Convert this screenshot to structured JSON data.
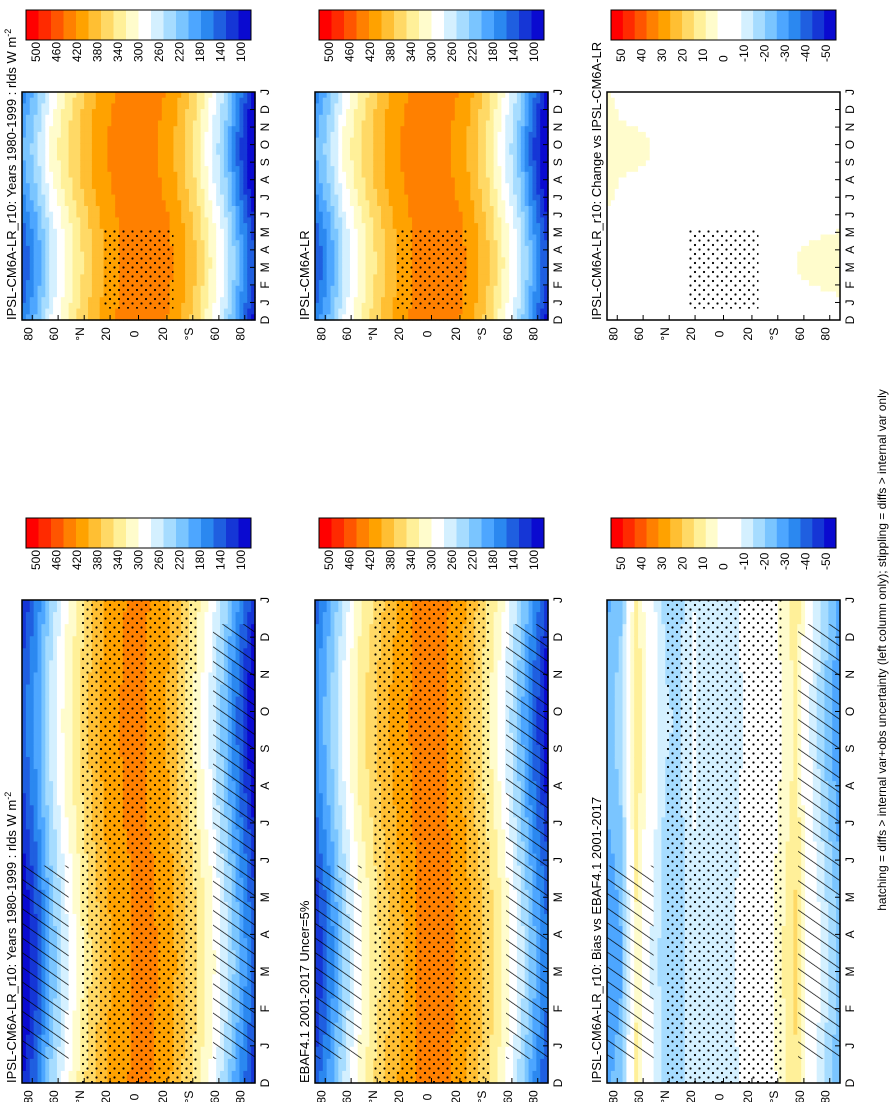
{
  "footer": "hatching = diffs > internal var+obs uncertainty (left column only); stippling = diffs > internal var only",
  "palettes": {
    "absolute": [
      "#ff0000",
      "#ff2a00",
      "#ff5500",
      "#ff8000",
      "#ffa200",
      "#ffbf33",
      "#ffd966",
      "#fff099",
      "#fffccc",
      "#ffffff",
      "#d4f0ff",
      "#a6dcff",
      "#7ac5ff",
      "#4da6ff",
      "#2b88f0",
      "#1f5fe0",
      "#1536d6",
      "#0a0ad0"
    ],
    "difference": [
      "#ff0000",
      "#ff2a00",
      "#ff5500",
      "#ff8000",
      "#ffa200",
      "#ffbf33",
      "#ffd966",
      "#fff099",
      "#fffccc",
      "#ffffff",
      "#ffffff",
      "#d4f0ff",
      "#a6dcff",
      "#7ac5ff",
      "#4da6ff",
      "#2b88f0",
      "#1f5fe0",
      "#1536d6",
      "#0a0ad0"
    ]
  },
  "panels": [
    {
      "id": "r1c1",
      "title": "IPSL-CM6A-LR_r10: Years 1980-1999 : rlds W m",
      "title_sup": "-2",
      "legend_labels": [
        "500",
        "460",
        "420",
        "380",
        "340",
        "300",
        "260",
        "220",
        "180",
        "140",
        "100"
      ]
    },
    {
      "id": "r1c2",
      "title": "IPSL-CM6A-LR_r10: Years 1980-1999 : rlds W m",
      "title_sup": "-2",
      "legend_labels": [
        "500",
        "460",
        "420",
        "380",
        "340",
        "300",
        "260",
        "220",
        "180",
        "140",
        "100"
      ]
    },
    {
      "id": "r2c1",
      "title": "EBAF4.1 2001-2017 Uncer=5%",
      "title_sup": "",
      "legend_labels": [
        "500",
        "460",
        "420",
        "380",
        "340",
        "300",
        "260",
        "220",
        "180",
        "140",
        "100"
      ]
    },
    {
      "id": "r2c2",
      "title": "IPSL-CM6A-LR",
      "title_sup": "",
      "legend_labels": [
        "500",
        "460",
        "420",
        "380",
        "340",
        "300",
        "260",
        "220",
        "180",
        "140",
        "100"
      ]
    },
    {
      "id": "r3c1",
      "title": "IPSL-CM6A-LR_r10: Bias vs EBAF4.1 2001-2017",
      "title_sup": "",
      "legend_labels": [
        "50",
        "40",
        "30",
        "20",
        "10",
        "0",
        "-10",
        "-20",
        "-30",
        "-40",
        "-50"
      ]
    },
    {
      "id": "r3c2",
      "title": "IPSL-CM6A-LR_r10: Change vs IPSL-CM6A-LR",
      "title_sup": "",
      "legend_labels": [
        "50",
        "40",
        "30",
        "20",
        "10",
        "0",
        "-10",
        "-20",
        "-30",
        "-40",
        "-50"
      ]
    }
  ],
  "chart_data": [
    {
      "type": "heatmap",
      "title": "IPSL-CM6A-LR_r10: Years 1980-1999 : rlds W m-2",
      "x": [
        "D",
        "J",
        "F",
        "M",
        "A",
        "M",
        "J",
        "J",
        "A",
        "S",
        "O",
        "N",
        "D",
        "J"
      ],
      "y": [
        "80",
        "60",
        "°N",
        "20",
        "0",
        "20",
        "°S",
        "60",
        "80"
      ],
      "colorbar": [
        500,
        460,
        420,
        380,
        340,
        300,
        260,
        220,
        180,
        140,
        100
      ],
      "profile_by_latitude": [
        120,
        170,
        240,
        290,
        330,
        370,
        395,
        410,
        415,
        410,
        395,
        365,
        330,
        290,
        240,
        180,
        125
      ]
    },
    {
      "type": "heatmap",
      "title": "IPSL-CM6A-LR_r10: Years 1980-1999 : rlds W m-2",
      "x": [
        "D",
        "J",
        "F",
        "M",
        "A",
        "M",
        "J",
        "J",
        "A",
        "S",
        "O",
        "N",
        "D",
        "J"
      ],
      "y": [
        "80",
        "60",
        "°N",
        "20",
        "0",
        "20",
        "°S",
        "60",
        "80"
      ],
      "colorbar": [
        500,
        460,
        420,
        380,
        340,
        300,
        260,
        220,
        180,
        140,
        100
      ],
      "profile_by_latitude": [
        175,
        220,
        280,
        320,
        355,
        385,
        405,
        420,
        425,
        420,
        410,
        385,
        350,
        300,
        250,
        175,
        110
      ]
    },
    {
      "type": "heatmap",
      "title": "EBAF4.1 2001-2017 Uncer=5%",
      "x": [
        "D",
        "J",
        "F",
        "M",
        "A",
        "M",
        "J",
        "J",
        "A",
        "S",
        "O",
        "N",
        "D",
        "J"
      ],
      "y": [
        "80",
        "60",
        "°N",
        "20",
        "0",
        "20",
        "°S",
        "60",
        "80"
      ],
      "colorbar": [
        500,
        460,
        420,
        380,
        340,
        300,
        260,
        220,
        180,
        140,
        100
      ],
      "profile_by_latitude": [
        150,
        200,
        260,
        310,
        345,
        375,
        395,
        415,
        420,
        415,
        400,
        370,
        340,
        300,
        250,
        190,
        135
      ]
    },
    {
      "type": "heatmap",
      "title": "IPSL-CM6A-LR",
      "x": [
        "D",
        "J",
        "F",
        "M",
        "A",
        "M",
        "J",
        "J",
        "A",
        "S",
        "O",
        "N",
        "D",
        "J"
      ],
      "y": [
        "80",
        "60",
        "°N",
        "20",
        "0",
        "20",
        "°S",
        "60",
        "80"
      ],
      "colorbar": [
        500,
        460,
        420,
        380,
        340,
        300,
        260,
        220,
        180,
        140,
        100
      ],
      "profile_by_latitude": [
        175,
        220,
        280,
        320,
        355,
        385,
        405,
        420,
        425,
        420,
        410,
        385,
        350,
        300,
        250,
        175,
        110
      ]
    },
    {
      "type": "heatmap",
      "title": "IPSL-CM6A-LR_r10: Bias vs EBAF4.1 2001-2017",
      "x": [
        "D",
        "J",
        "F",
        "M",
        "A",
        "M",
        "J",
        "J",
        "A",
        "S",
        "O",
        "N",
        "D",
        "J"
      ],
      "y": [
        "80",
        "60",
        "°N",
        "20",
        "0",
        "20",
        "°S",
        "60",
        "80"
      ],
      "colorbar": [
        50,
        40,
        30,
        20,
        10,
        0,
        -10,
        -20,
        -30,
        -40,
        -50
      ],
      "profile_by_latitude": [
        -25,
        -20,
        10,
        -5,
        -15,
        -15,
        -8,
        -12,
        -10,
        -8,
        -5,
        -2,
        5,
        12,
        -5,
        -15,
        -25
      ]
    },
    {
      "type": "heatmap",
      "title": "IPSL-CM6A-LR_r10: Change vs IPSL-CM6A-LR",
      "x": [
        "D",
        "J",
        "F",
        "M",
        "A",
        "M",
        "J",
        "J",
        "A",
        "S",
        "O",
        "N",
        "D",
        "J"
      ],
      "y": [
        "80",
        "60",
        "°N",
        "20",
        "0",
        "20",
        "°S",
        "60",
        "80"
      ],
      "colorbar": [
        50,
        40,
        30,
        20,
        10,
        0,
        -10,
        -20,
        -30,
        -40,
        -50
      ],
      "profile_by_latitude": [
        3,
        0,
        0,
        0,
        0,
        0,
        0,
        0,
        0,
        0,
        0,
        0,
        0,
        0,
        0,
        0,
        0
      ]
    }
  ]
}
